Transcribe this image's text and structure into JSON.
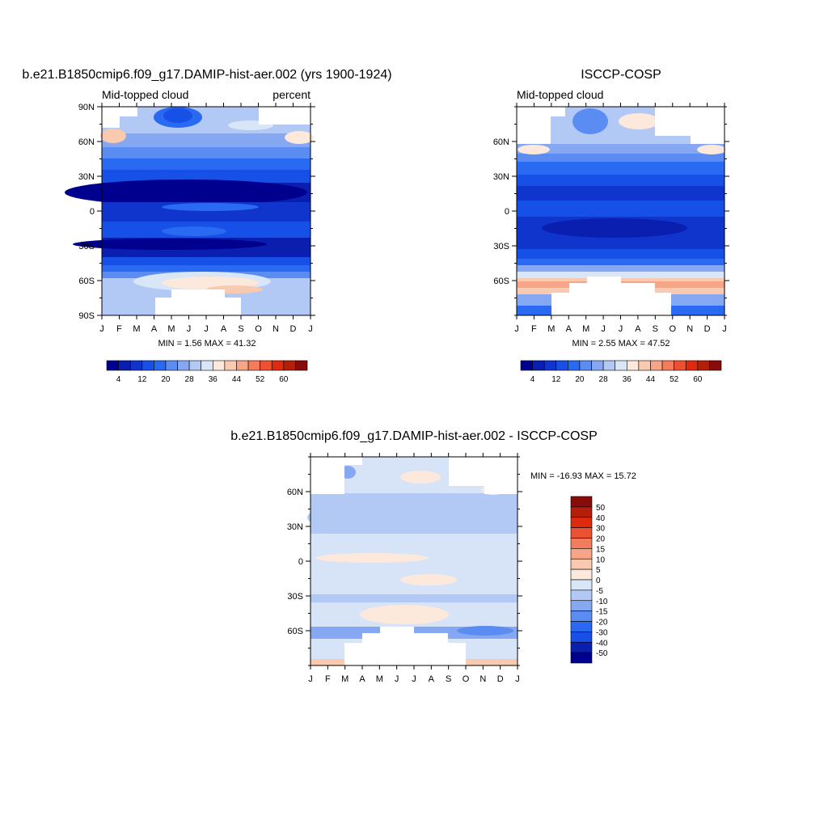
{
  "colors": {
    "blue_red_ramp": [
      "#00008e",
      "#0a1eb0",
      "#0f35cc",
      "#1650e6",
      "#2a6af2",
      "#5a8cf2",
      "#86a8f2",
      "#b3c9f5",
      "#d8e6f7",
      "#fde9dc",
      "#f9c9b0",
      "#f6a586",
      "#f37c5c",
      "#ec5132",
      "#de2b0f",
      "#b41f0a",
      "#880d0a"
    ],
    "abs_base": "#0d2ee0",
    "diff_base": "#d7e4f7"
  },
  "chart_data": [
    {
      "type": "heatmap",
      "title": "b.e21.B1850cmip6.f09_g17.DAMIP-hist-aer.002 (yrs 1900-1924)",
      "subtitle_left": "Mid-topped cloud",
      "subtitle_right": "percent",
      "x_tick_labels": [
        "J",
        "F",
        "M",
        "A",
        "M",
        "J",
        "J",
        "A",
        "S",
        "O",
        "N",
        "D",
        "J"
      ],
      "y_tick_labels": [
        "90N",
        "60N",
        "30N",
        "0",
        "30S",
        "60S",
        "90S"
      ],
      "ylim": [
        -90,
        90
      ],
      "stats_text": "MIN =   1.56 MAX =  41.32",
      "min": 1.56,
      "max": 41.32,
      "colorbar": {
        "orientation": "horizontal",
        "levels": [
          4,
          8,
          12,
          16,
          20,
          24,
          28,
          32,
          36,
          40,
          44,
          48,
          52,
          56,
          60
        ],
        "labels": [
          "4",
          "12",
          "20",
          "28",
          "36",
          "44",
          "52",
          "60"
        ]
      }
    },
    {
      "type": "heatmap",
      "title": "ISCCP-COSP",
      "subtitle_left": "Mid-topped cloud",
      "subtitle_right": "",
      "x_tick_labels": [
        "J",
        "F",
        "M",
        "A",
        "M",
        "J",
        "J",
        "A",
        "S",
        "O",
        "N",
        "D",
        "J"
      ],
      "y_tick_labels": [
        "60N",
        "30N",
        "0",
        "30S",
        "60S"
      ],
      "ylim": [
        -90,
        90
      ],
      "stats_text": "MIN =   2.55 MAX =  47.52",
      "min": 2.55,
      "max": 47.52,
      "colorbar": {
        "orientation": "horizontal",
        "levels": [
          4,
          8,
          12,
          16,
          20,
          24,
          28,
          32,
          36,
          40,
          44,
          48,
          52,
          56,
          60
        ],
        "labels": [
          "4",
          "12",
          "20",
          "28",
          "36",
          "44",
          "52",
          "60"
        ]
      }
    },
    {
      "type": "heatmap",
      "title": "b.e21.B1850cmip6.f09_g17.DAMIP-hist-aer.002 - ISCCP-COSP",
      "x_tick_labels": [
        "J",
        "F",
        "M",
        "A",
        "M",
        "J",
        "J",
        "A",
        "S",
        "O",
        "N",
        "D",
        "J"
      ],
      "y_tick_labels": [
        "60N",
        "30N",
        "0",
        "30S",
        "60S"
      ],
      "ylim": [
        -90,
        90
      ],
      "stats_text": "MIN = -16.93 MAX =  15.72",
      "min": -16.93,
      "max": 15.72,
      "colorbar": {
        "orientation": "vertical",
        "levels": [
          -50,
          -40,
          -30,
          -20,
          -15,
          -10,
          -5,
          0,
          5,
          10,
          15,
          20,
          30,
          40,
          50
        ],
        "labels": [
          "50",
          "40",
          "30",
          "20",
          "15",
          "10",
          "5",
          "0",
          "-5",
          "-10",
          "-15",
          "-20",
          "-30",
          "-40",
          "-50"
        ]
      }
    }
  ]
}
